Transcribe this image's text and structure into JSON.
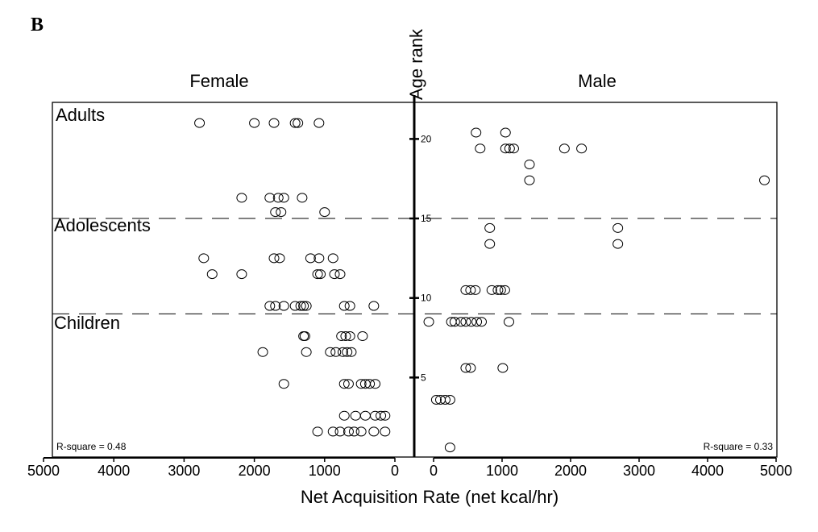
{
  "chart_data": {
    "type": "scatter",
    "panel_label": "B",
    "title": "",
    "xlabel": "Net Acquisition Rate (net kcal/hr)",
    "ylabel": "Age rank",
    "left_panel_title": "Female",
    "right_panel_title": "Male",
    "left_xlim": [
      5000,
      0
    ],
    "right_xlim": [
      0,
      5000
    ],
    "ylim": [
      0,
      22.3
    ],
    "x_ticks_left": [
      5000,
      4000,
      3000,
      2000,
      1000,
      0
    ],
    "x_ticks_right": [
      0,
      1000,
      2000,
      3000,
      4000,
      5000
    ],
    "y_ticks": [
      5,
      10,
      15,
      20
    ],
    "group_boundaries": [
      15,
      9
    ],
    "groups": [
      "Adults",
      "Adolescents",
      "Children"
    ],
    "annotations": {
      "female_r_square": "R-square = 0.48",
      "male_r_square": "R-square = 0.33"
    },
    "grid": false,
    "series": [
      {
        "sex": "female",
        "points": [
          {
            "x": 2780,
            "y": 21
          },
          {
            "x": 2000,
            "y": 21
          },
          {
            "x": 1720,
            "y": 21
          },
          {
            "x": 1420,
            "y": 21
          },
          {
            "x": 1380,
            "y": 21
          },
          {
            "x": 1080,
            "y": 21
          },
          {
            "x": 2180,
            "y": 16.3
          },
          {
            "x": 1780,
            "y": 16.3
          },
          {
            "x": 1660,
            "y": 16.3
          },
          {
            "x": 1580,
            "y": 16.3
          },
          {
            "x": 1320,
            "y": 16.3
          },
          {
            "x": 1700,
            "y": 15.4
          },
          {
            "x": 1620,
            "y": 15.4
          },
          {
            "x": 1000,
            "y": 15.4
          },
          {
            "x": 2720,
            "y": 12.5
          },
          {
            "x": 1720,
            "y": 12.5
          },
          {
            "x": 1640,
            "y": 12.5
          },
          {
            "x": 1200,
            "y": 12.5
          },
          {
            "x": 1080,
            "y": 12.5
          },
          {
            "x": 880,
            "y": 12.5
          },
          {
            "x": 2600,
            "y": 11.5
          },
          {
            "x": 2180,
            "y": 11.5
          },
          {
            "x": 1100,
            "y": 11.5
          },
          {
            "x": 1060,
            "y": 11.5
          },
          {
            "x": 860,
            "y": 11.5
          },
          {
            "x": 780,
            "y": 11.5
          },
          {
            "x": 1780,
            "y": 9.5
          },
          {
            "x": 1700,
            "y": 9.5
          },
          {
            "x": 1580,
            "y": 9.5
          },
          {
            "x": 1420,
            "y": 9.5
          },
          {
            "x": 1340,
            "y": 9.5
          },
          {
            "x": 1300,
            "y": 9.5
          },
          {
            "x": 1260,
            "y": 9.5
          },
          {
            "x": 720,
            "y": 9.5
          },
          {
            "x": 640,
            "y": 9.5
          },
          {
            "x": 300,
            "y": 9.5
          },
          {
            "x": 1300,
            "y": 7.6
          },
          {
            "x": 1280,
            "y": 7.6
          },
          {
            "x": 760,
            "y": 7.6
          },
          {
            "x": 700,
            "y": 7.6
          },
          {
            "x": 640,
            "y": 7.6
          },
          {
            "x": 460,
            "y": 7.6
          },
          {
            "x": 1880,
            "y": 6.6
          },
          {
            "x": 1260,
            "y": 6.6
          },
          {
            "x": 920,
            "y": 6.6
          },
          {
            "x": 840,
            "y": 6.6
          },
          {
            "x": 740,
            "y": 6.6
          },
          {
            "x": 680,
            "y": 6.6
          },
          {
            "x": 620,
            "y": 6.6
          },
          {
            "x": 1580,
            "y": 4.6
          },
          {
            "x": 720,
            "y": 4.6
          },
          {
            "x": 660,
            "y": 4.6
          },
          {
            "x": 480,
            "y": 4.6
          },
          {
            "x": 420,
            "y": 4.6
          },
          {
            "x": 360,
            "y": 4.6
          },
          {
            "x": 280,
            "y": 4.6
          },
          {
            "x": 720,
            "y": 2.6
          },
          {
            "x": 560,
            "y": 2.6
          },
          {
            "x": 420,
            "y": 2.6
          },
          {
            "x": 280,
            "y": 2.6
          },
          {
            "x": 200,
            "y": 2.6
          },
          {
            "x": 140,
            "y": 2.6
          },
          {
            "x": 1100,
            "y": 1.6
          },
          {
            "x": 880,
            "y": 1.6
          },
          {
            "x": 780,
            "y": 1.6
          },
          {
            "x": 660,
            "y": 1.6
          },
          {
            "x": 580,
            "y": 1.6
          },
          {
            "x": 480,
            "y": 1.6
          },
          {
            "x": 300,
            "y": 1.6
          },
          {
            "x": 140,
            "y": 1.6
          }
        ]
      },
      {
        "sex": "male",
        "points": [
          {
            "x": 620,
            "y": 20.4
          },
          {
            "x": 1050,
            "y": 20.4
          },
          {
            "x": 680,
            "y": 19.4
          },
          {
            "x": 1050,
            "y": 19.4
          },
          {
            "x": 1110,
            "y": 19.4
          },
          {
            "x": 1170,
            "y": 19.4
          },
          {
            "x": 1910,
            "y": 19.4
          },
          {
            "x": 2160,
            "y": 19.4
          },
          {
            "x": 1400,
            "y": 18.4
          },
          {
            "x": 1400,
            "y": 17.4
          },
          {
            "x": 4830,
            "y": 17.4
          },
          {
            "x": 820,
            "y": 14.4
          },
          {
            "x": 2690,
            "y": 14.4
          },
          {
            "x": 820,
            "y": 13.4
          },
          {
            "x": 2690,
            "y": 13.4
          },
          {
            "x": 470,
            "y": 10.5
          },
          {
            "x": 540,
            "y": 10.5
          },
          {
            "x": 610,
            "y": 10.5
          },
          {
            "x": 850,
            "y": 10.5
          },
          {
            "x": 940,
            "y": 10.5
          },
          {
            "x": 980,
            "y": 10.5
          },
          {
            "x": 1040,
            "y": 10.5
          },
          {
            "x": -70,
            "y": 8.5
          },
          {
            "x": 260,
            "y": 8.5
          },
          {
            "x": 310,
            "y": 8.5
          },
          {
            "x": 400,
            "y": 8.5
          },
          {
            "x": 470,
            "y": 8.5
          },
          {
            "x": 550,
            "y": 8.5
          },
          {
            "x": 630,
            "y": 8.5
          },
          {
            "x": 700,
            "y": 8.5
          },
          {
            "x": 1100,
            "y": 8.5
          },
          {
            "x": 470,
            "y": 5.6
          },
          {
            "x": 540,
            "y": 5.6
          },
          {
            "x": 1010,
            "y": 5.6
          },
          {
            "x": 40,
            "y": 3.6
          },
          {
            "x": 100,
            "y": 3.6
          },
          {
            "x": 170,
            "y": 3.6
          },
          {
            "x": 240,
            "y": 3.6
          },
          {
            "x": 240,
            "y": 0.6
          }
        ]
      }
    ]
  }
}
